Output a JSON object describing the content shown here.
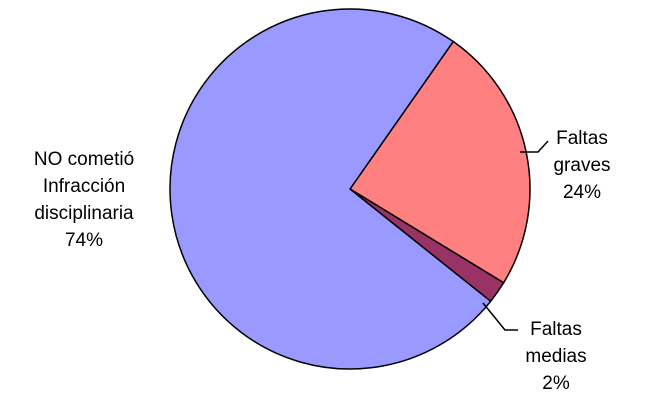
{
  "chart_data": {
    "type": "pie",
    "title": "",
    "slices": [
      {
        "label_lines": [
          "Faltas",
          "graves"
        ],
        "percent_label": "24%",
        "value": 24,
        "color": "#FF8080"
      },
      {
        "label_lines": [
          "Faltas",
          "medias"
        ],
        "percent_label": "2%",
        "value": 2,
        "color": "#993366"
      },
      {
        "label_lines": [
          "NO cometió",
          "Infracción",
          "disciplinaria"
        ],
        "percent_label": "74%",
        "value": 74,
        "color": "#9999FF"
      }
    ]
  }
}
